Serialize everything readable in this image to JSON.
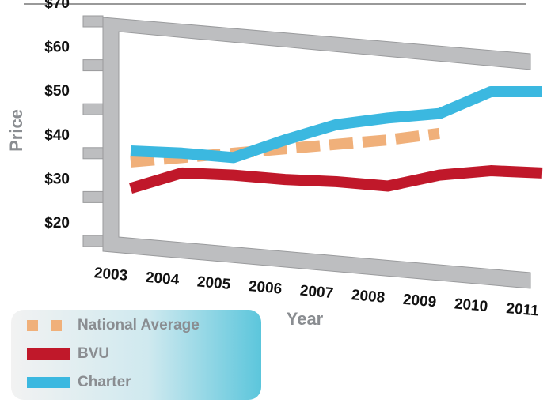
{
  "chart_data": {
    "type": "line",
    "x_label": "Year",
    "y_label": "Price",
    "categories": [
      "2003",
      "2004",
      "2005",
      "2006",
      "2007",
      "2008",
      "2009",
      "2010",
      "2011"
    ],
    "ylim": [
      20,
      70
    ],
    "yticks": [
      {
        "value": 20,
        "label": "$20"
      },
      {
        "value": 30,
        "label": "$30"
      },
      {
        "value": 40,
        "label": "$40"
      },
      {
        "value": 50,
        "label": "$50"
      },
      {
        "value": 60,
        "label": "$60"
      },
      {
        "value": 70,
        "label": "$70"
      }
    ],
    "legend": "bottom-left",
    "series": [
      {
        "name": "National Average",
        "color": "#f0b07a",
        "dashed": true,
        "values": [
          38,
          39,
          40,
          41,
          42,
          43,
          44.5,
          null,
          null
        ]
      },
      {
        "name": "BVU",
        "color": "#c0182a",
        "values": [
          32,
          35.5,
          35,
          34,
          33.5,
          32.5,
          35,
          36,
          35.5
        ]
      },
      {
        "name": "Charter",
        "color": "#3bb8e0",
        "values": [
          40.5,
          40,
          39,
          43,
          46.5,
          48,
          49,
          54,
          54
        ]
      }
    ]
  }
}
